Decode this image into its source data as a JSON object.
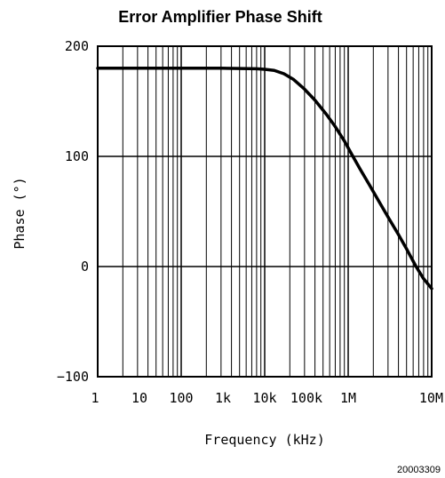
{
  "chart_data": {
    "type": "line",
    "title": "Error Amplifier Phase Shift",
    "xlabel": "Frequency (kHz)",
    "ylabel": "Phase (°)",
    "x_scale": "log",
    "xlim": [
      1,
      10000
    ],
    "ylim": [
      -100,
      200
    ],
    "grid": true,
    "x_ticks": [
      {
        "value": 1,
        "label": "1"
      },
      {
        "value": 3.16,
        "label": "10"
      },
      {
        "value": 10,
        "label": "100"
      },
      {
        "value": 31.6,
        "label": "1k"
      },
      {
        "value": 100,
        "label": "10k"
      },
      {
        "value": 316,
        "label": "100k"
      },
      {
        "value": 1000,
        "label": "1M"
      },
      {
        "value": 10000,
        "label": "10M"
      }
    ],
    "y_ticks": [
      {
        "value": 200,
        "label": "200"
      },
      {
        "value": 100,
        "label": "100"
      },
      {
        "value": 0,
        "label": "0"
      },
      {
        "value": -100,
        "label": "−100"
      }
    ],
    "series": [
      {
        "x": [
          1,
          3,
          10,
          30,
          80,
          100,
          130,
          170,
          220,
          300,
          400,
          550,
          700,
          900,
          1100,
          1400,
          1800,
          2300,
          3000,
          4000,
          5000,
          6500,
          8000,
          10000
        ],
        "y": [
          180,
          180,
          180,
          180,
          179.5,
          179,
          178,
          175,
          170,
          161,
          151,
          138,
          127,
          114,
          102,
          88,
          74,
          60,
          45,
          29,
          16,
          0,
          -11,
          -20
        ]
      }
    ]
  },
  "figure_id": "20003309",
  "colors": {
    "grid": "#000000",
    "line": "#000000",
    "background": "#ffffff"
  }
}
